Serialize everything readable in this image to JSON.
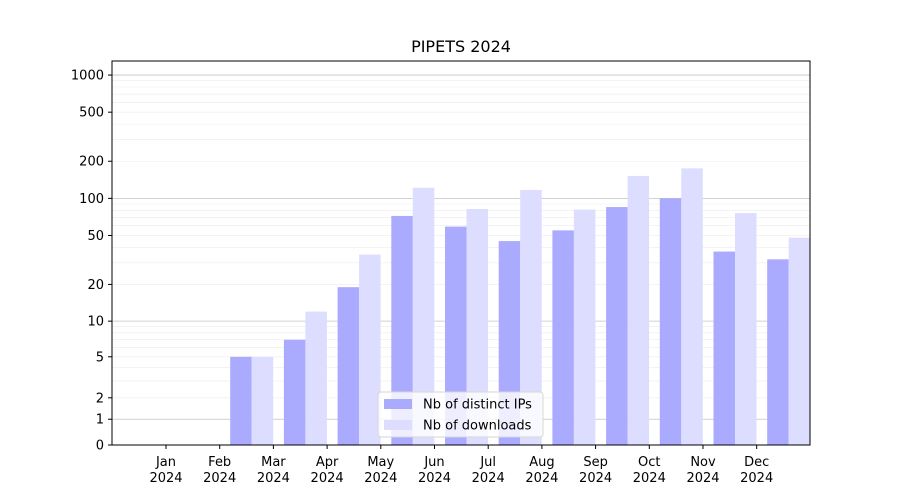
{
  "chart_data": {
    "type": "bar",
    "title": "PIPETS 2024",
    "xlabel": "",
    "ylabel": "",
    "yscale": "symlog",
    "categories": [
      "Jan\n2024",
      "Feb\n2024",
      "Mar\n2024",
      "Apr\n2024",
      "May\n2024",
      "Jun\n2024",
      "Jul\n2024",
      "Aug\n2024",
      "Sep\n2024",
      "Oct\n2024",
      "Nov\n2024",
      "Dec\n2024"
    ],
    "yticks": [
      "0",
      "1",
      "2",
      "5",
      "10",
      "20",
      "50",
      "100",
      "200",
      "500",
      "1000"
    ],
    "ylim": [
      0,
      1300
    ],
    "grid": true,
    "legend_position": "bottom-center",
    "series": [
      {
        "name": "Nb of distinct IPs",
        "color": "#aaaaff",
        "values": [
          0,
          5,
          7,
          19,
          72,
          59,
          45,
          55,
          85,
          100,
          37,
          32
        ]
      },
      {
        "name": "Nb of downloads",
        "color": "#ddddff",
        "values": [
          0,
          5,
          12,
          35,
          122,
          82,
          117,
          81,
          152,
          175,
          76,
          48
        ]
      }
    ]
  }
}
